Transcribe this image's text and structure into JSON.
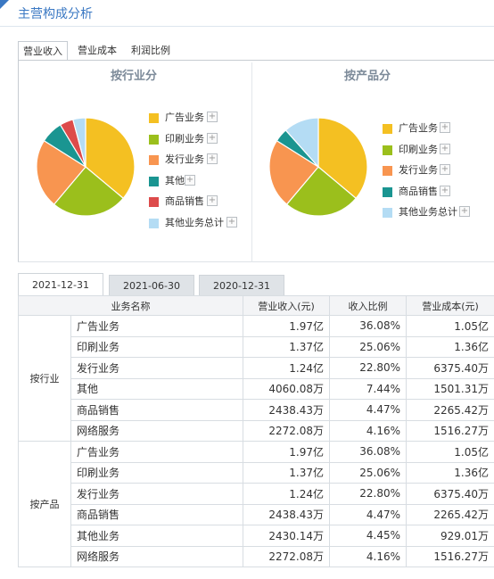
{
  "header": {
    "title": "主营构成分析"
  },
  "section_tabs": [
    {
      "label": "营业收入",
      "active": true
    },
    {
      "label": "营业成本",
      "active": false
    },
    {
      "label": "利润比例",
      "active": false
    }
  ],
  "chart_data": [
    {
      "type": "pie",
      "title": "按行业分",
      "categories": [
        "广告业务",
        "印刷业务",
        "发行业务",
        "其他",
        "商品销售",
        "其他业务总计"
      ],
      "values": [
        36.08,
        25.06,
        22.8,
        7.44,
        4.47,
        4.16
      ],
      "colors": [
        "#f4c022",
        "#9bbf1c",
        "#f89550",
        "#1a9591",
        "#dd4b4b",
        "#b4dcf4"
      ],
      "legend": "right"
    },
    {
      "type": "pie",
      "title": "按产品分",
      "categories": [
        "广告业务",
        "印刷业务",
        "发行业务",
        "商品销售",
        "其他业务总计"
      ],
      "values": [
        36.08,
        25.06,
        22.8,
        4.47,
        11.59
      ],
      "colors": [
        "#f4c022",
        "#9bbf1c",
        "#f89550",
        "#1a9591",
        "#b4dcf4"
      ],
      "legend": "right"
    }
  ],
  "legend_plus": "+",
  "date_tabs": [
    {
      "label": "2021-12-31",
      "active": true
    },
    {
      "label": "2021-06-30",
      "active": false
    },
    {
      "label": "2020-12-31",
      "active": false
    }
  ],
  "table": {
    "headers": [
      "业务名称",
      "营业收入(元)",
      "收入比例",
      "营业成本(元)"
    ],
    "groups": [
      {
        "name": "按行业",
        "rows": [
          [
            "广告业务",
            "1.97亿",
            "36.08%",
            "1.05亿"
          ],
          [
            "印刷业务",
            "1.37亿",
            "25.06%",
            "1.36亿"
          ],
          [
            "发行业务",
            "1.24亿",
            "22.80%",
            "6375.40万"
          ],
          [
            "其他",
            "4060.08万",
            "7.44%",
            "1501.31万"
          ],
          [
            "商品销售",
            "2438.43万",
            "4.47%",
            "2265.42万"
          ],
          [
            "网络服务",
            "2272.08万",
            "4.16%",
            "1516.27万"
          ]
        ]
      },
      {
        "name": "按产品",
        "rows": [
          [
            "广告业务",
            "1.97亿",
            "36.08%",
            "1.05亿"
          ],
          [
            "印刷业务",
            "1.37亿",
            "25.06%",
            "1.36亿"
          ],
          [
            "发行业务",
            "1.24亿",
            "22.80%",
            "6375.40万"
          ],
          [
            "商品销售",
            "2438.43万",
            "4.47%",
            "2265.42万"
          ],
          [
            "其他业务",
            "2430.14万",
            "4.45%",
            "929.01万"
          ],
          [
            "网络服务",
            "2272.08万",
            "4.16%",
            "1516.27万"
          ]
        ]
      }
    ]
  }
}
